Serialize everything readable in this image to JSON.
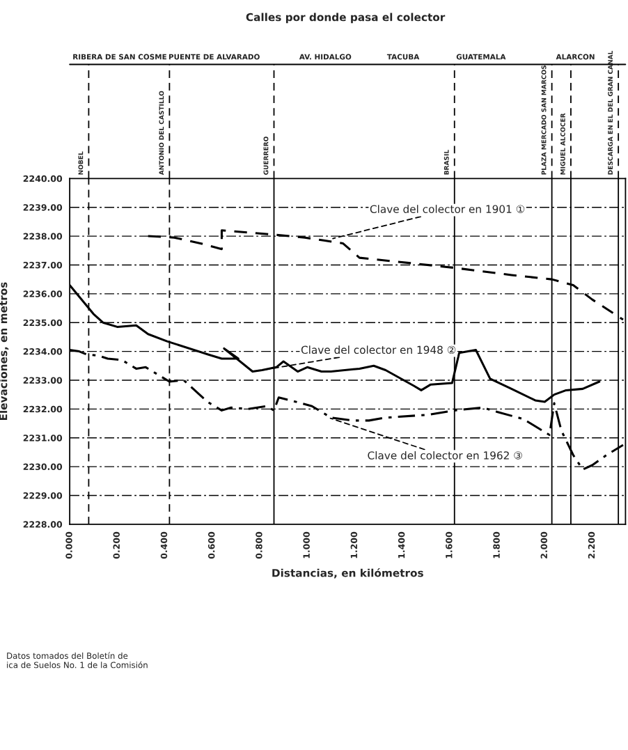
{
  "chart_data": {
    "type": "line",
    "title": "Calles por donde pasa el colector",
    "xlabel": "Distancias, en kilómetros",
    "ylabel": "Elevaciones, en metros",
    "xlim": [
      0,
      2.34
    ],
    "ylim": [
      2228,
      2240
    ],
    "xticks": [
      {
        "value": 0,
        "label": "0.000"
      },
      {
        "value": 0.2,
        "label": "0.200"
      },
      {
        "value": 0.4,
        "label": "0.400"
      },
      {
        "value": 0.6,
        "label": "0.600"
      },
      {
        "value": 0.8,
        "label": "0.800"
      },
      {
        "value": 1.0,
        "label": "1.000"
      },
      {
        "value": 1.2,
        "label": "1.200"
      },
      {
        "value": 1.4,
        "label": "1.400"
      },
      {
        "value": 1.6,
        "label": "1.600"
      },
      {
        "value": 1.8,
        "label": "1.800"
      },
      {
        "value": 2.0,
        "label": "2.000"
      },
      {
        "value": 2.2,
        "label": "2.200"
      }
    ],
    "yticks": [
      {
        "value": 2228,
        "label": "2228.00"
      },
      {
        "value": 2229,
        "label": "2229.00"
      },
      {
        "value": 2230,
        "label": "2230.00"
      },
      {
        "value": 2231,
        "label": "2231.00"
      },
      {
        "value": 2232,
        "label": "2232.00"
      },
      {
        "value": 2233,
        "label": "2233.00"
      },
      {
        "value": 2234,
        "label": "2234.00"
      },
      {
        "value": 2235,
        "label": "2235.00"
      },
      {
        "value": 2236,
        "label": "2236.00"
      },
      {
        "value": 2237,
        "label": "2237.00"
      },
      {
        "value": 2238,
        "label": "2238.00"
      },
      {
        "value": 2239,
        "label": "2239.00"
      },
      {
        "value": 2240,
        "label": "2240.00"
      }
    ],
    "grid": "y",
    "legend": false,
    "marker": "none",
    "series": [
      {
        "color": "#000000",
        "line_style": "dashed",
        "x": [
          0.33,
          0.44,
          0.55,
          0.64,
          0.64,
          0.86,
          0.99,
          1.07,
          1.15,
          1.22,
          1.45,
          1.62,
          1.86,
          2.03,
          2.12,
          2.2,
          2.33
        ],
        "values": [
          2238.0,
          2237.95,
          2237.75,
          2237.55,
          2238.2,
          2238.05,
          2237.95,
          2237.85,
          2237.75,
          2237.25,
          2237.05,
          2236.9,
          2236.65,
          2236.5,
          2236.3,
          2235.8,
          2235.1
        ]
      },
      {
        "color": "#000000",
        "line_style": "solid",
        "x": [
          0,
          0.04,
          0.1,
          0.14,
          0.2,
          0.28,
          0.33,
          0.41,
          0.58,
          0.64,
          0.71,
          0.65,
          0.77,
          0.81,
          0.87,
          0.9,
          0.96,
          1.0,
          1.06,
          1.1,
          1.22,
          1.28,
          1.33,
          1.45,
          1.48,
          1.52,
          1.61,
          1.64,
          1.71,
          1.77,
          1.86,
          1.96,
          2.0,
          2.04,
          2.09,
          2.16,
          2.23
        ],
        "values": [
          2236.3,
          2235.9,
          2235.3,
          2235.0,
          2234.85,
          2234.9,
          2234.6,
          2234.35,
          2233.9,
          2233.75,
          2233.75,
          2234.1,
          2233.3,
          2233.35,
          2233.45,
          2233.65,
          2233.3,
          2233.45,
          2233.3,
          2233.3,
          2233.4,
          2233.5,
          2233.35,
          2232.8,
          2232.65,
          2232.85,
          2232.9,
          2233.95,
          2234.05,
          2233.05,
          2232.7,
          2232.3,
          2232.25,
          2232.5,
          2232.65,
          2232.7,
          2232.95
        ]
      },
      {
        "color": "#000000",
        "line_style": "dotted",
        "x": [
          0,
          0.04,
          0.07,
          0.12,
          0.16,
          0.22,
          0.28,
          0.32,
          0.38,
          0.42,
          0.48,
          0.54,
          0.58,
          0.64,
          0.68,
          0.75,
          0.83,
          0.86,
          0.88,
          0.93,
          1.02,
          1.1,
          1.19,
          1.26,
          1.33,
          1.51,
          1.62,
          1.74,
          1.8,
          1.91,
          2.02,
          2.04,
          2.07,
          2.12,
          2.16,
          2.2,
          2.26,
          2.33
        ],
        "values": [
          2234.05,
          2234.0,
          2233.9,
          2233.85,
          2233.75,
          2233.7,
          2233.4,
          2233.45,
          2233.15,
          2232.95,
          2233.0,
          2232.55,
          2232.25,
          2231.95,
          2232.05,
          2232.0,
          2232.1,
          2231.95,
          2232.4,
          2232.3,
          2232.1,
          2231.7,
          2231.6,
          2231.6,
          2231.7,
          2231.8,
          2231.95,
          2232.05,
          2231.9,
          2231.65,
          2231.1,
          2232.2,
          2231.25,
          2230.4,
          2229.9,
          2230.05,
          2230.4,
          2230.75
        ]
      }
    ],
    "ref_lines": [
      {
        "axis": "x",
        "value": 0.08,
        "label": "NOBEL",
        "line_style": "dashed"
      },
      {
        "axis": "x",
        "value": 0.42,
        "label": "ANTONIO DEL CASTILLO",
        "line_style": "dashed"
      },
      {
        "axis": "x",
        "value": 0.86,
        "label": "GUERRERO",
        "line_style": "solid"
      },
      {
        "axis": "x",
        "value": 1.62,
        "label": "BRASIL",
        "line_style": "solid"
      },
      {
        "axis": "x",
        "value": 2.03,
        "label": "PLAZA MERCADO SAN MARCOS",
        "line_style": "solid"
      },
      {
        "axis": "x",
        "value": 2.11,
        "label": "MIGUEL ALCOCER",
        "line_style": "solid"
      },
      {
        "axis": "x",
        "value": 2.31,
        "label": "DESCARGA EN EL DEL GRAN CANAL",
        "line_style": "solid"
      }
    ],
    "annotations": [
      {
        "text": "Clave del colector en 1901 ①",
        "x": 1.1,
        "y": 2237.9
      },
      {
        "text": "Clave del colector en 1948 ②",
        "x": 0.81,
        "y": 2233.35
      },
      {
        "text": "Clave del colector en 1962 ③",
        "x": 1.09,
        "y": 2231.7
      },
      "RIBERA DE SAN COSME",
      "PUENTE DE ALVARADO",
      "AV. HIDALGO",
      "TACUBA",
      "GUATEMALA",
      "ALARCON",
      "Datos tomados del Boletín de\nica de Suelos No. 1 de la Comisión"
    ]
  }
}
